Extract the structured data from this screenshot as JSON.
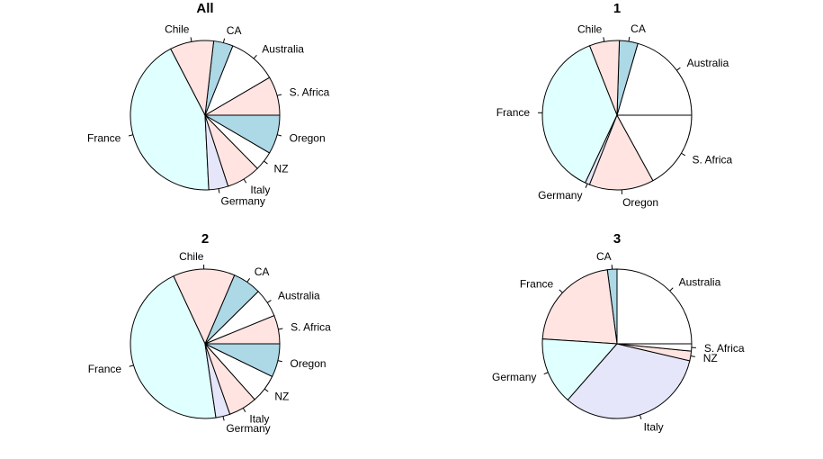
{
  "colors": [
    "#FFFFFF",
    "#ADD8E6",
    "#FFE4E1",
    "#E0FFFF",
    "#E6E6FA",
    "#FFF8DC"
  ],
  "chart_data": [
    {
      "type": "pie",
      "title": "All",
      "init_angle": 0,
      "clockwise": false,
      "slices": [
        {
          "label": "S. Africa",
          "value": 8,
          "color": "#FFE4E1"
        },
        {
          "label": "Australia",
          "value": 10,
          "color": "#FFFFFF"
        },
        {
          "label": "CA",
          "value": 4,
          "color": "#ADD8E6"
        },
        {
          "label": "Chile",
          "value": 9,
          "color": "#FFE4E1"
        },
        {
          "label": "France",
          "value": 41,
          "color": "#E0FFFF"
        },
        {
          "label": "Germany",
          "value": 4,
          "color": "#E6E6FA"
        },
        {
          "label": "Italy",
          "value": 7,
          "color": "#FFE4E1"
        },
        {
          "label": "NZ",
          "value": 4,
          "color": "#FFFFFF"
        },
        {
          "label": "Oregon",
          "value": 8,
          "color": "#ADD8E6"
        }
      ]
    },
    {
      "type": "pie",
      "title": "1",
      "init_angle": 0,
      "clockwise": false,
      "slices": [
        {
          "label": "Australia",
          "value": 20.5,
          "color": "#FFFFFF"
        },
        {
          "label": "CA",
          "value": 4,
          "color": "#ADD8E6"
        },
        {
          "label": "Chile",
          "value": 6.5,
          "color": "#FFE4E1"
        },
        {
          "label": "France",
          "value": 37,
          "color": "#E0FFFF"
        },
        {
          "label": "Germany",
          "value": 1,
          "color": "#E6E6FA"
        },
        {
          "label": "Oregon",
          "value": 14,
          "color": "#FFE4E1"
        },
        {
          "label": "S. Africa",
          "value": 17,
          "color": "#FFFFFF"
        }
      ]
    },
    {
      "type": "pie",
      "title": "2",
      "init_angle": 0,
      "clockwise": false,
      "slices": [
        {
          "label": "S. Africa",
          "value": 6,
          "color": "#FFE4E1"
        },
        {
          "label": "Australia",
          "value": 6,
          "color": "#FFFFFF"
        },
        {
          "label": "CA",
          "value": 6,
          "color": "#ADD8E6"
        },
        {
          "label": "Chile",
          "value": 13,
          "color": "#FFE4E1"
        },
        {
          "label": "France",
          "value": 44,
          "color": "#E0FFFF"
        },
        {
          "label": "Germany",
          "value": 3,
          "color": "#E6E6FA"
        },
        {
          "label": "Italy",
          "value": 6,
          "color": "#FFE4E1"
        },
        {
          "label": "NZ",
          "value": 6,
          "color": "#FFFFFF"
        },
        {
          "label": "Oregon",
          "value": 7,
          "color": "#ADD8E6"
        }
      ]
    },
    {
      "type": "pie",
      "title": "3",
      "init_angle": 0,
      "clockwise": false,
      "slices": [
        {
          "label": "Australia",
          "value": 24,
          "color": "#FFFFFF"
        },
        {
          "label": "CA",
          "value": 2,
          "color": "#ADD8E6"
        },
        {
          "label": "France",
          "value": 21,
          "color": "#FFE4E1"
        },
        {
          "label": "Germany",
          "value": 14,
          "color": "#E0FFFF"
        },
        {
          "label": "Italy",
          "value": 31.5,
          "color": "#E6E6FA"
        },
        {
          "label": "NZ",
          "value": 2,
          "color": "#FFE4E1"
        },
        {
          "label": "S. Africa",
          "value": 1.5,
          "color": "#FFFFFF"
        }
      ]
    }
  ]
}
